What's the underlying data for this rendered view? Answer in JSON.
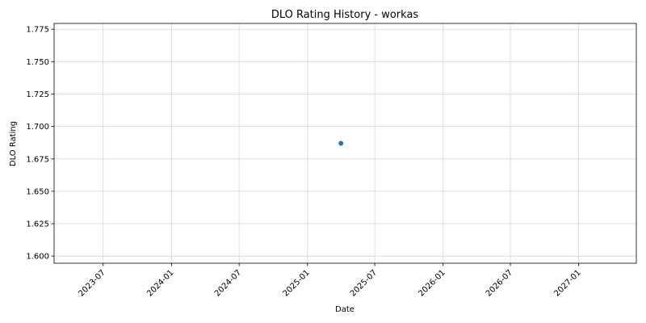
{
  "chart_data": {
    "type": "scatter",
    "title": "DLO Rating History - workas",
    "xlabel": "Date",
    "ylabel": "DLO Rating",
    "x_ticks": [
      "2023-07",
      "2024-01",
      "2024-07",
      "2025-01",
      "2025-07",
      "2026-01",
      "2026-07",
      "2027-01"
    ],
    "y_ticks": [
      "1.600",
      "1.625",
      "1.650",
      "1.675",
      "1.700",
      "1.725",
      "1.750",
      "1.775"
    ],
    "xlim": [
      "2023-02-19",
      "2027-06-05"
    ],
    "ylim": [
      1.5945,
      1.7795
    ],
    "grid": true,
    "points": [
      {
        "x": "2025-04-01",
        "y": 1.687
      }
    ],
    "colors": {
      "point": "#1f77b4",
      "grid": "#b0b0b0",
      "axes": "#000000"
    }
  }
}
